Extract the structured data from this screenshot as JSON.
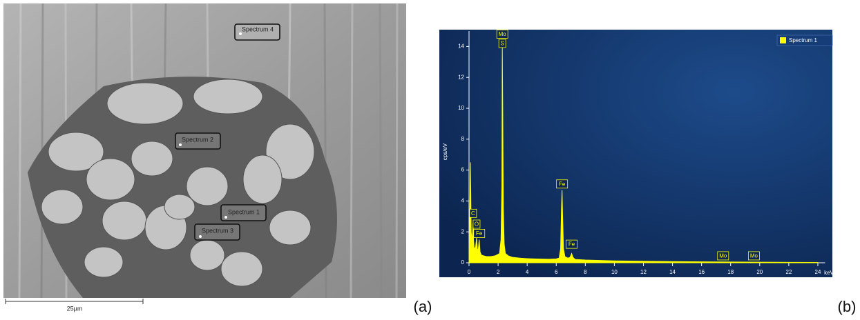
{
  "image": {
    "labels": [
      "Spectrum 4",
      "Spectrum 2",
      "Spectrum 1",
      "Spectrum 3"
    ],
    "scale_bar": "25µm"
  },
  "panel_labels": [
    "(a)",
    "(b)"
  ],
  "chart_data": {
    "type": "area",
    "y_label": "cps/eV",
    "x_label": "keV",
    "xlim": [
      0,
      24.5
    ],
    "ylim": [
      0,
      15
    ],
    "xticks": [
      0,
      2,
      4,
      6,
      8,
      10,
      12,
      14,
      16,
      18,
      20,
      22,
      24
    ],
    "yticks": [
      0,
      2,
      4,
      6,
      8,
      10,
      12,
      14
    ],
    "legend": "upper right",
    "series": [
      {
        "name": "Spectrum 1",
        "color": "#ffff00",
        "x": [
          0,
          0.05,
          0.1,
          0.15,
          0.2,
          0.25,
          0.28,
          0.31,
          0.36,
          0.45,
          0.52,
          0.58,
          0.64,
          0.7,
          0.76,
          0.85,
          1.0,
          1.2,
          1.5,
          1.8,
          2.1,
          2.2,
          2.26,
          2.29,
          2.32,
          2.36,
          2.42,
          2.5,
          2.7,
          3.0,
          3.5,
          4.0,
          4.5,
          5.0,
          5.5,
          6.0,
          6.2,
          6.3,
          6.36,
          6.4,
          6.44,
          6.5,
          6.6,
          6.8,
          6.95,
          7.06,
          7.15,
          7.3,
          8.0,
          9.0,
          10,
          12,
          14,
          16,
          18,
          20,
          22,
          24
        ],
        "values": [
          0,
          3.0,
          6.5,
          2.0,
          1.4,
          2.0,
          2.6,
          1.5,
          0.9,
          1.0,
          1.6,
          0.8,
          0.9,
          1.5,
          0.7,
          0.5,
          0.45,
          0.4,
          0.4,
          0.45,
          0.6,
          1.5,
          5.0,
          14.0,
          10.0,
          3.5,
          1.2,
          0.6,
          0.45,
          0.35,
          0.3,
          0.27,
          0.25,
          0.24,
          0.23,
          0.25,
          0.3,
          0.9,
          3.5,
          4.7,
          3.0,
          0.9,
          0.4,
          0.3,
          0.35,
          0.6,
          0.35,
          0.22,
          0.18,
          0.15,
          0.12,
          0.1,
          0.08,
          0.06,
          0.05,
          0.04,
          0.03,
          0.02
        ]
      }
    ],
    "annotations": [
      {
        "text": "C",
        "x": 0.28,
        "y": 3.2
      },
      {
        "text": "O",
        "x": 0.52,
        "y": 2.5
      },
      {
        "text": "Fe",
        "x": 0.7,
        "y": 1.9
      },
      {
        "text": "S",
        "x": 2.29,
        "y": 14.2
      },
      {
        "text": "Mo",
        "x": 2.29,
        "y": 14.8
      },
      {
        "text": "Fe",
        "x": 6.4,
        "y": 5.1
      },
      {
        "text": "Fe",
        "x": 7.06,
        "y": 1.2
      },
      {
        "text": "Mo",
        "x": 17.48,
        "y": 0.45
      },
      {
        "text": "Mo",
        "x": 19.6,
        "y": 0.45
      }
    ]
  }
}
